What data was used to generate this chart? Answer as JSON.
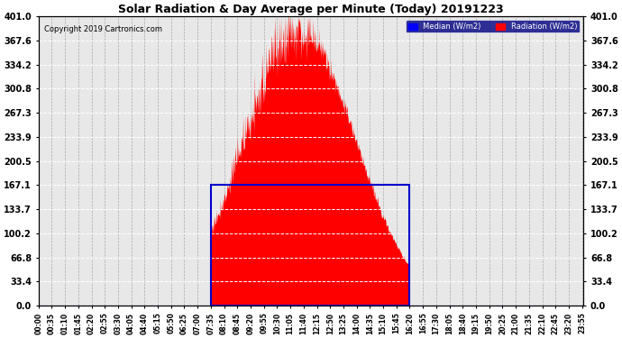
{
  "title": "Solar Radiation & Day Average per Minute (Today) 20191223",
  "copyright": "Copyright 2019 Cartronics.com",
  "yticks": [
    0.0,
    33.4,
    66.8,
    100.2,
    133.7,
    167.1,
    200.5,
    233.9,
    267.3,
    300.8,
    334.2,
    367.6,
    401.0
  ],
  "ymax": 401.0,
  "ymin": 0.0,
  "legend_median_label": "Median (W/m2)",
  "legend_radiation_label": "Radiation (W/m2)",
  "median_color": "#0000FF",
  "radiation_color": "#FF0000",
  "bg_color": "#FFFFFF",
  "plot_bg_color": "#E8E8E8",
  "box_color": "#0000CC",
  "median_line_value": 167.1,
  "sunrise_minute": 455,
  "sunset_minute": 978,
  "total_minutes": 1440,
  "tick_interval": 35,
  "figwidth": 6.9,
  "figheight": 3.75,
  "dpi": 100
}
